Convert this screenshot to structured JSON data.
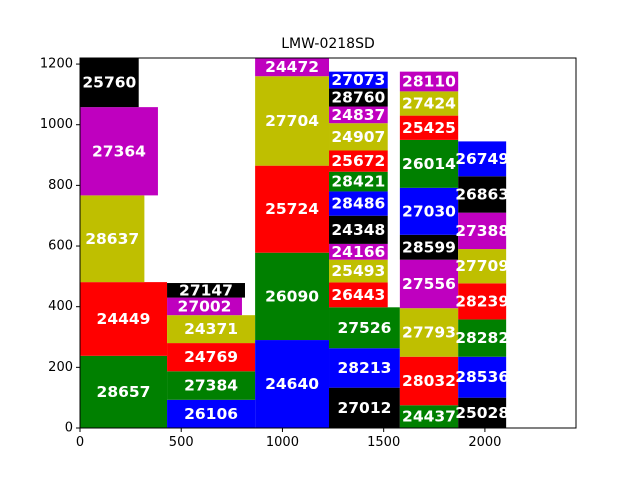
{
  "chart_data": {
    "type": "treemap-rectangles",
    "title": "LMW-0218SD",
    "xlim": [
      0,
      2450
    ],
    "ylim": [
      0,
      1220
    ],
    "xticks": [
      0,
      500,
      1000,
      1500,
      2000
    ],
    "yticks": [
      0,
      200,
      400,
      600,
      800,
      1000,
      1200
    ],
    "colors": {
      "green": "#008000",
      "red": "#ff0000",
      "olive": "#bfbf00",
      "magenta": "#bf00bf",
      "black": "#000000",
      "blue": "#0000ff"
    },
    "grid": false,
    "boxes": [
      {
        "label": "28657",
        "x0": 0,
        "x1": 430,
        "y0": 0,
        "y1": 238,
        "color": "green"
      },
      {
        "label": "24449",
        "x0": 0,
        "x1": 430,
        "y0": 238,
        "y1": 481,
        "color": "red"
      },
      {
        "label": "28637",
        "x0": 0,
        "x1": 318,
        "y0": 481,
        "y1": 767,
        "color": "olive"
      },
      {
        "label": "27364",
        "x0": 0,
        "x1": 385,
        "y0": 767,
        "y1": 1058,
        "color": "magenta"
      },
      {
        "label": "25760",
        "x0": 0,
        "x1": 290,
        "y0": 1058,
        "y1": 1220,
        "color": "black"
      },
      {
        "label": "26106",
        "x0": 430,
        "x1": 865,
        "y0": 0,
        "y1": 93,
        "color": "blue"
      },
      {
        "label": "27384",
        "x0": 430,
        "x1": 865,
        "y0": 93,
        "y1": 187,
        "color": "green"
      },
      {
        "label": "24769",
        "x0": 430,
        "x1": 865,
        "y0": 187,
        "y1": 280,
        "color": "red"
      },
      {
        "label": "24371",
        "x0": 430,
        "x1": 865,
        "y0": 280,
        "y1": 372,
        "color": "olive"
      },
      {
        "label": "27002",
        "x0": 430,
        "x1": 800,
        "y0": 372,
        "y1": 430,
        "color": "magenta"
      },
      {
        "label": "27147",
        "x0": 430,
        "x1": 815,
        "y0": 430,
        "y1": 478,
        "color": "black"
      },
      {
        "label": "24640",
        "x0": 865,
        "x1": 1230,
        "y0": 0,
        "y1": 290,
        "color": "blue"
      },
      {
        "label": "26090",
        "x0": 865,
        "x1": 1230,
        "y0": 290,
        "y1": 578,
        "color": "green"
      },
      {
        "label": "25724",
        "x0": 865,
        "x1": 1230,
        "y0": 578,
        "y1": 865,
        "color": "red"
      },
      {
        "label": "27704",
        "x0": 865,
        "x1": 1230,
        "y0": 865,
        "y1": 1160,
        "color": "olive"
      },
      {
        "label": "24472",
        "x0": 865,
        "x1": 1230,
        "y0": 1160,
        "y1": 1220,
        "color": "magenta"
      },
      {
        "label": "27012",
        "x0": 1230,
        "x1": 1580,
        "y0": 0,
        "y1": 133,
        "color": "black"
      },
      {
        "label": "28213",
        "x0": 1230,
        "x1": 1580,
        "y0": 133,
        "y1": 263,
        "color": "blue"
      },
      {
        "label": "27526",
        "x0": 1230,
        "x1": 1580,
        "y0": 263,
        "y1": 398,
        "color": "green"
      },
      {
        "label": "26443",
        "x0": 1230,
        "x1": 1520,
        "y0": 398,
        "y1": 480,
        "color": "red"
      },
      {
        "label": "25493",
        "x0": 1230,
        "x1": 1520,
        "y0": 480,
        "y1": 555,
        "color": "olive"
      },
      {
        "label": "24166",
        "x0": 1230,
        "x1": 1520,
        "y0": 555,
        "y1": 607,
        "color": "magenta"
      },
      {
        "label": "24348",
        "x0": 1230,
        "x1": 1520,
        "y0": 607,
        "y1": 700,
        "color": "black"
      },
      {
        "label": "28486",
        "x0": 1230,
        "x1": 1520,
        "y0": 700,
        "y1": 780,
        "color": "blue"
      },
      {
        "label": "28421",
        "x0": 1230,
        "x1": 1520,
        "y0": 780,
        "y1": 845,
        "color": "green"
      },
      {
        "label": "25672",
        "x0": 1230,
        "x1": 1520,
        "y0": 845,
        "y1": 915,
        "color": "red"
      },
      {
        "label": "24907",
        "x0": 1230,
        "x1": 1520,
        "y0": 915,
        "y1": 1005,
        "color": "olive"
      },
      {
        "label": "24837",
        "x0": 1230,
        "x1": 1520,
        "y0": 1005,
        "y1": 1060,
        "color": "magenta"
      },
      {
        "label": "28760",
        "x0": 1230,
        "x1": 1520,
        "y0": 1060,
        "y1": 1120,
        "color": "black"
      },
      {
        "label": "27073",
        "x0": 1230,
        "x1": 1520,
        "y0": 1120,
        "y1": 1175,
        "color": "blue"
      },
      {
        "label": "24437",
        "x0": 1580,
        "x1": 1868,
        "y0": 0,
        "y1": 75,
        "color": "green"
      },
      {
        "label": "28032",
        "x0": 1580,
        "x1": 1868,
        "y0": 75,
        "y1": 235,
        "color": "red"
      },
      {
        "label": "27793",
        "x0": 1580,
        "x1": 1868,
        "y0": 235,
        "y1": 395,
        "color": "olive"
      },
      {
        "label": "27556",
        "x0": 1580,
        "x1": 1868,
        "y0": 395,
        "y1": 555,
        "color": "magenta"
      },
      {
        "label": "28599",
        "x0": 1580,
        "x1": 1868,
        "y0": 555,
        "y1": 637,
        "color": "black"
      },
      {
        "label": "27030",
        "x0": 1580,
        "x1": 1868,
        "y0": 637,
        "y1": 792,
        "color": "blue"
      },
      {
        "label": "26014",
        "x0": 1580,
        "x1": 1868,
        "y0": 792,
        "y1": 950,
        "color": "green"
      },
      {
        "label": "25425",
        "x0": 1580,
        "x1": 1868,
        "y0": 950,
        "y1": 1030,
        "color": "red"
      },
      {
        "label": "27424",
        "x0": 1580,
        "x1": 1868,
        "y0": 1030,
        "y1": 1110,
        "color": "olive"
      },
      {
        "label": "28110",
        "x0": 1580,
        "x1": 1868,
        "y0": 1110,
        "y1": 1175,
        "color": "magenta"
      },
      {
        "label": "25028",
        "x0": 1868,
        "x1": 2105,
        "y0": 0,
        "y1": 100,
        "color": "black"
      },
      {
        "label": "28536",
        "x0": 1868,
        "x1": 2105,
        "y0": 100,
        "y1": 235,
        "color": "blue"
      },
      {
        "label": "28282",
        "x0": 1868,
        "x1": 2105,
        "y0": 235,
        "y1": 358,
        "color": "green"
      },
      {
        "label": "28239",
        "x0": 1868,
        "x1": 2105,
        "y0": 358,
        "y1": 477,
        "color": "red"
      },
      {
        "label": "27709",
        "x0": 1868,
        "x1": 2105,
        "y0": 477,
        "y1": 590,
        "color": "olive"
      },
      {
        "label": "27388",
        "x0": 1868,
        "x1": 2105,
        "y0": 590,
        "y1": 710,
        "color": "magenta"
      },
      {
        "label": "26863",
        "x0": 1868,
        "x1": 2105,
        "y0": 710,
        "y1": 830,
        "color": "black"
      },
      {
        "label": "26749",
        "x0": 1868,
        "x1": 2105,
        "y0": 830,
        "y1": 945,
        "color": "blue"
      }
    ]
  }
}
